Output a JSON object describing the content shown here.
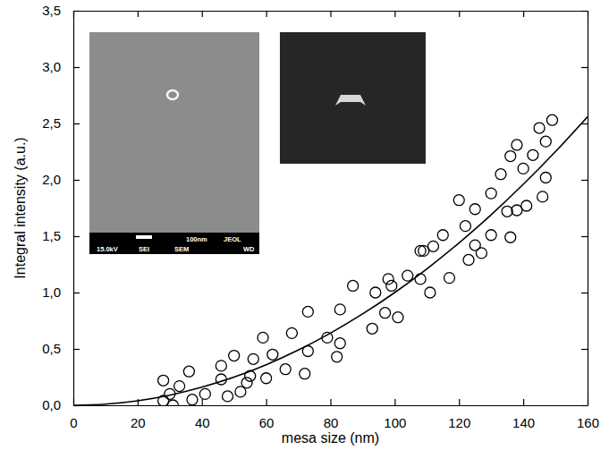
{
  "chart_data": {
    "type": "scatter",
    "x_label": "mesa size (nm)",
    "y_label": "Integral intensity (a.u.)",
    "xlim": [
      0,
      160
    ],
    "ylim": [
      0,
      3.5
    ],
    "xticks": [
      0,
      20,
      40,
      60,
      80,
      100,
      120,
      140,
      160
    ],
    "yticks": [
      {
        "value": 0,
        "label": "0,0"
      },
      {
        "value": 0.5,
        "label": "0,5"
      },
      {
        "value": 1,
        "label": "1,0"
      },
      {
        "value": 1.5,
        "label": "1,5"
      },
      {
        "value": 2,
        "label": "2,0"
      },
      {
        "value": 2.5,
        "label": "2,5"
      },
      {
        "value": 3,
        "label": "3,0"
      },
      {
        "value": 3.5,
        "label": "3,5"
      }
    ],
    "series": [
      {
        "type": "scatter",
        "marker": "circle",
        "color": "#000000",
        "x": [
          28,
          28,
          30,
          31,
          33,
          36,
          37,
          41,
          46,
          46,
          48,
          50,
          52,
          54,
          55,
          56,
          59,
          60,
          62,
          66,
          68,
          72,
          73,
          73,
          79,
          82,
          83,
          83,
          87,
          93,
          94,
          97,
          98,
          99,
          101,
          104,
          108,
          109,
          108,
          111,
          112,
          115,
          117,
          120,
          122,
          123,
          125,
          125,
          127,
          130,
          130,
          133,
          135,
          136,
          136,
          138,
          138,
          140,
          141,
          143,
          145,
          146,
          147,
          147,
          149
        ],
        "values": [
          0.22,
          0.04,
          0.1,
          0.0,
          0.17,
          0.3,
          0.05,
          0.1,
          0.35,
          0.23,
          0.08,
          0.44,
          0.12,
          0.2,
          0.26,
          0.41,
          0.6,
          0.24,
          0.45,
          0.32,
          0.64,
          0.28,
          0.83,
          0.48,
          0.6,
          0.43,
          0.55,
          0.85,
          1.06,
          0.68,
          1.0,
          0.82,
          1.12,
          1.06,
          0.78,
          1.15,
          1.37,
          1.37,
          1.12,
          1.0,
          1.41,
          1.51,
          1.13,
          1.82,
          1.59,
          1.29,
          1.74,
          1.42,
          1.35,
          1.88,
          1.51,
          2.05,
          1.72,
          1.49,
          2.21,
          2.31,
          1.73,
          2.1,
          1.77,
          2.22,
          2.46,
          1.85,
          2.34,
          2.02,
          2.53
        ]
      },
      {
        "type": "line",
        "line_style": "solid",
        "color": "#000000",
        "x": [
          0,
          10,
          20,
          30,
          40,
          50,
          60,
          70,
          80,
          90,
          100,
          110,
          120,
          130,
          140,
          150,
          160
        ],
        "values": [
          0,
          0.01,
          0.04,
          0.09,
          0.16,
          0.25,
          0.36,
          0.49,
          0.64,
          0.81,
          1.0,
          1.21,
          1.44,
          1.69,
          1.96,
          2.25,
          2.56
        ]
      }
    ],
    "annotations": [
      "100nm",
      "JEOL",
      "15.0kV",
      "SEI",
      "SEM",
      "WD"
    ]
  }
}
